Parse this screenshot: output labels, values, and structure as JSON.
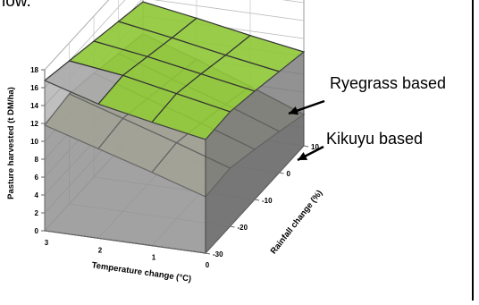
{
  "top_text": "low.",
  "chart_data": {
    "type": "surface3d",
    "ylabel": "Pasture harvested (t DM/ha)",
    "xlabel": "Temperature change (°C)",
    "depth_label": "Rainfall change (%)",
    "zlim": [
      0,
      18
    ],
    "z_ticks": [
      "0",
      "2",
      "4",
      "6",
      "8",
      "10",
      "12",
      "14",
      "16",
      "18"
    ],
    "x_ticks": [
      "3",
      "2",
      "1",
      "0"
    ],
    "depth_ticks": [
      "10",
      "0",
      "-10",
      "-20",
      "-30"
    ],
    "grid": true,
    "annotations": [
      "Ryegrass based",
      "Kikuyu based"
    ],
    "series": [
      {
        "name": "Ryegrass based",
        "color": "#9acd32",
        "values": [
          [
            16.8,
            16.0,
            15.2,
            14.4,
            13.6
          ],
          [
            15.0,
            15.2,
            14.3,
            13.4,
            12.6
          ],
          [
            13.8,
            14.0,
            13.2,
            12.3,
            11.5
          ],
          [
            12.7,
            12.8,
            12.1,
            11.3,
            10.5
          ]
        ]
      },
      {
        "name": "Kikuyu based",
        "color": "#dddd22",
        "values": [
          [
            11.8,
            12.3,
            11.6,
            10.8,
            10.0
          ],
          [
            10.0,
            10.4,
            9.6,
            8.8,
            8.0
          ],
          [
            8.2,
            8.5,
            7.7,
            6.8,
            5.8
          ],
          [
            6.3,
            6.5,
            5.6,
            4.6,
            3.5
          ]
        ]
      }
    ]
  }
}
